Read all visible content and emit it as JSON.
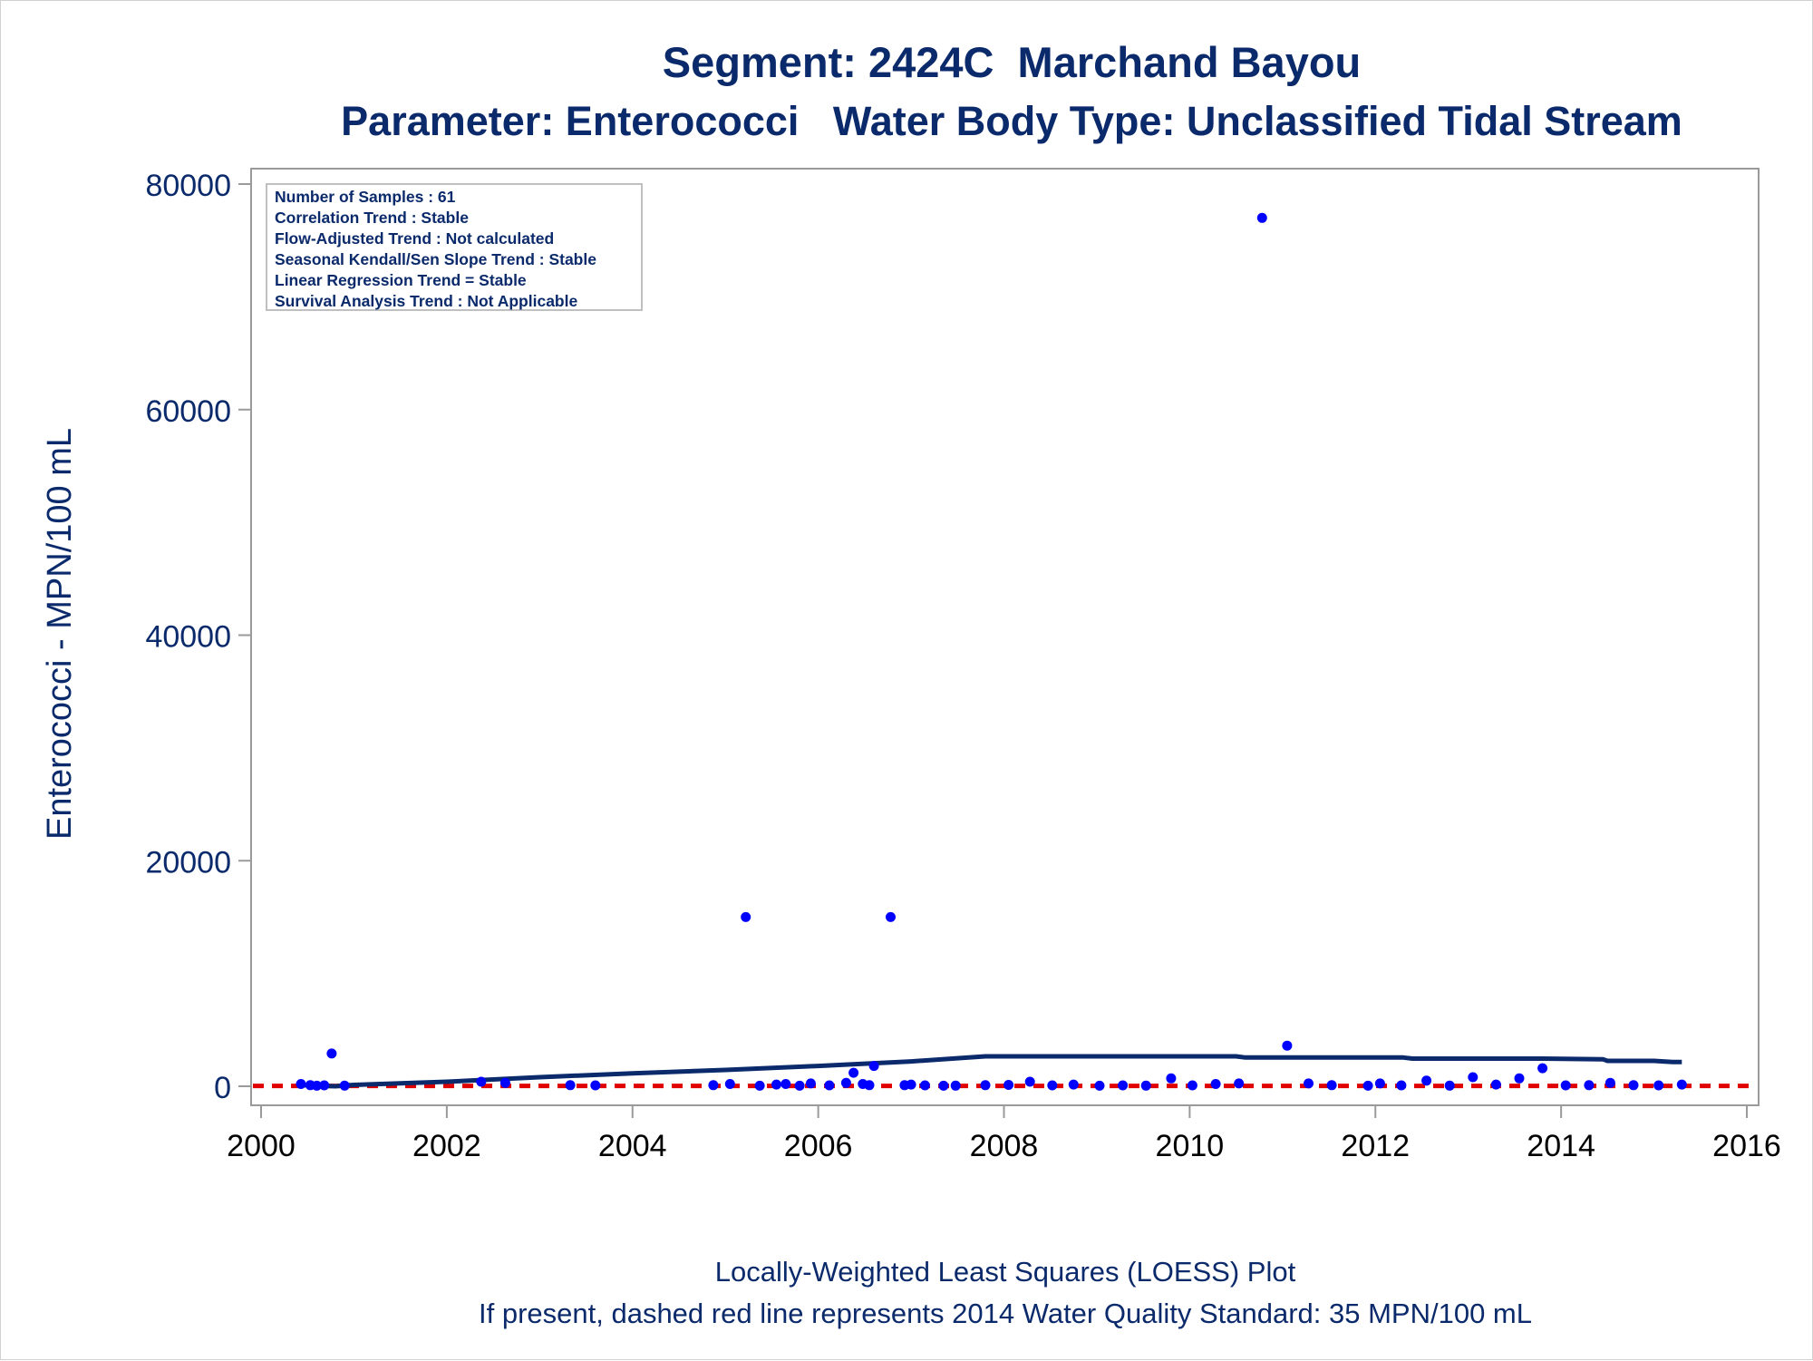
{
  "chart_data": {
    "type": "scatter",
    "title": "Segment: 2424C  Marchand Bayou",
    "subtitle": "Parameter: Enterococci   Water Body Type: Unclassified Tidal Stream",
    "ylabel": "Enterococci - MPN/100 mL",
    "xlabel": "",
    "xlim": [
      2000,
      2016
    ],
    "ylim": [
      0,
      80000
    ],
    "x_ticks": [
      2000,
      2002,
      2004,
      2006,
      2008,
      2010,
      2012,
      2014,
      2016
    ],
    "y_ticks": [
      0,
      20000,
      40000,
      60000,
      80000
    ],
    "x_tick_labels": [
      "2000",
      "2002",
      "2004",
      "2006",
      "2008",
      "2010",
      "2012",
      "2014",
      "2016"
    ],
    "y_tick_labels": [
      "0",
      "20000",
      "40000",
      "60000",
      "80000"
    ],
    "info_box": [
      "Number of Samples : 61",
      "Correlation Trend : Stable",
      "Flow-Adjusted Trend : Not calculated",
      "Seasonal Kendall/Sen Slope Trend : Stable",
      "Linear Regression Trend = Stable",
      "Survival Analysis Trend : Not Applicable"
    ],
    "footnote_1": "Locally-Weighted Least Squares (LOESS) Plot",
    "footnote_2": "If present, dashed red line represents 2014 Water Quality Standard: 35 MPN/100 mL",
    "standard_value": 35,
    "colors": {
      "points": "#0000ff",
      "loess": "#0b2a6b",
      "standard": "#e00000",
      "text": "#0b2a6b"
    },
    "points": [
      {
        "x": 2000.43,
        "y": 200
      },
      {
        "x": 2000.53,
        "y": 100
      },
      {
        "x": 2000.6,
        "y": 50
      },
      {
        "x": 2000.68,
        "y": 80
      },
      {
        "x": 2000.76,
        "y": 2900
      },
      {
        "x": 2000.9,
        "y": 60
      },
      {
        "x": 2002.37,
        "y": 400
      },
      {
        "x": 2002.63,
        "y": 300
      },
      {
        "x": 2003.33,
        "y": 100
      },
      {
        "x": 2003.6,
        "y": 80
      },
      {
        "x": 2004.87,
        "y": 100
      },
      {
        "x": 2005.05,
        "y": 200
      },
      {
        "x": 2005.22,
        "y": 15000
      },
      {
        "x": 2005.37,
        "y": 50
      },
      {
        "x": 2005.55,
        "y": 150
      },
      {
        "x": 2005.65,
        "y": 200
      },
      {
        "x": 2005.8,
        "y": 50
      },
      {
        "x": 2005.92,
        "y": 250
      },
      {
        "x": 2006.12,
        "y": 80
      },
      {
        "x": 2006.3,
        "y": 300
      },
      {
        "x": 2006.38,
        "y": 1200
      },
      {
        "x": 2006.48,
        "y": 200
      },
      {
        "x": 2006.55,
        "y": 100
      },
      {
        "x": 2006.6,
        "y": 1800
      },
      {
        "x": 2006.78,
        "y": 15000
      },
      {
        "x": 2006.93,
        "y": 100
      },
      {
        "x": 2007.0,
        "y": 150
      },
      {
        "x": 2007.15,
        "y": 80
      },
      {
        "x": 2007.35,
        "y": 50
      },
      {
        "x": 2007.48,
        "y": 60
      },
      {
        "x": 2007.8,
        "y": 100
      },
      {
        "x": 2008.05,
        "y": 120
      },
      {
        "x": 2008.28,
        "y": 400
      },
      {
        "x": 2008.52,
        "y": 80
      },
      {
        "x": 2008.75,
        "y": 150
      },
      {
        "x": 2009.03,
        "y": 50
      },
      {
        "x": 2009.28,
        "y": 80
      },
      {
        "x": 2009.53,
        "y": 60
      },
      {
        "x": 2009.8,
        "y": 700
      },
      {
        "x": 2010.03,
        "y": 80
      },
      {
        "x": 2010.28,
        "y": 200
      },
      {
        "x": 2010.53,
        "y": 250
      },
      {
        "x": 2010.78,
        "y": 77000
      },
      {
        "x": 2011.05,
        "y": 3600
      },
      {
        "x": 2011.28,
        "y": 250
      },
      {
        "x": 2011.53,
        "y": 100
      },
      {
        "x": 2011.92,
        "y": 50
      },
      {
        "x": 2012.05,
        "y": 250
      },
      {
        "x": 2012.28,
        "y": 80
      },
      {
        "x": 2012.55,
        "y": 500
      },
      {
        "x": 2012.8,
        "y": 60
      },
      {
        "x": 2013.05,
        "y": 800
      },
      {
        "x": 2013.3,
        "y": 150
      },
      {
        "x": 2013.55,
        "y": 700
      },
      {
        "x": 2013.8,
        "y": 1600
      },
      {
        "x": 2014.05,
        "y": 80
      },
      {
        "x": 2014.3,
        "y": 100
      },
      {
        "x": 2014.53,
        "y": 300
      },
      {
        "x": 2014.78,
        "y": 100
      },
      {
        "x": 2015.05,
        "y": 80
      },
      {
        "x": 2015.3,
        "y": 150
      }
    ],
    "loess": [
      {
        "x": 2000.43,
        "y": 100
      },
      {
        "x": 2000.8,
        "y": 0
      },
      {
        "x": 2001.0,
        "y": 120
      },
      {
        "x": 2002.0,
        "y": 400
      },
      {
        "x": 2003.0,
        "y": 800
      },
      {
        "x": 2004.0,
        "y": 1150
      },
      {
        "x": 2005.0,
        "y": 1450
      },
      {
        "x": 2006.0,
        "y": 1800
      },
      {
        "x": 2007.0,
        "y": 2200
      },
      {
        "x": 2007.8,
        "y": 2650
      },
      {
        "x": 2009.0,
        "y": 2650
      },
      {
        "x": 2010.5,
        "y": 2650
      },
      {
        "x": 2010.6,
        "y": 2550
      },
      {
        "x": 2012.3,
        "y": 2550
      },
      {
        "x": 2012.4,
        "y": 2450
      },
      {
        "x": 2013.8,
        "y": 2450
      },
      {
        "x": 2014.45,
        "y": 2400
      },
      {
        "x": 2014.5,
        "y": 2250
      },
      {
        "x": 2015.0,
        "y": 2250
      },
      {
        "x": 2015.2,
        "y": 2150
      },
      {
        "x": 2015.3,
        "y": 2150
      }
    ]
  }
}
